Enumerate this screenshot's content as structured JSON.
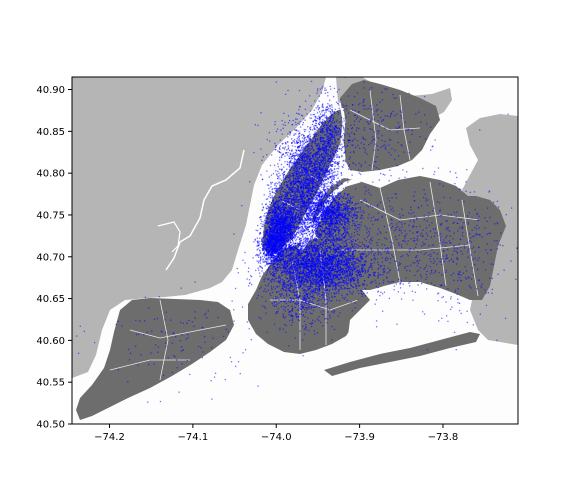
{
  "chart_data": {
    "type": "scatter",
    "title": "",
    "xlabel": "",
    "ylabel": "",
    "xlim": [
      -74.245,
      -73.71
    ],
    "ylim": [
      40.5,
      40.915
    ],
    "x_ticks": [
      -74.2,
      -74.1,
      -74.0,
      -73.9,
      -73.8
    ],
    "x_tick_labels": [
      "−74.2",
      "−74.1",
      "−74.0",
      "−73.9",
      "−73.8"
    ],
    "y_ticks": [
      40.5,
      40.55,
      40.6,
      40.65,
      40.7,
      40.75,
      40.8,
      40.85,
      40.9
    ],
    "y_tick_labels": [
      "40.50",
      "40.55",
      "40.60",
      "40.65",
      "40.70",
      "40.75",
      "40.80",
      "40.85",
      "40.90"
    ],
    "grid": false,
    "legend": "none",
    "colors": {
      "water": "#fdfdfd",
      "land_context": "#b5b5b5",
      "land_city": "#6d6d6d",
      "boundary": "#e8e8e8",
      "points": "#0000ff"
    },
    "clusters": [
      {
        "x": -73.965,
        "y": 40.785,
        "sx": 0.018,
        "sy": 0.035,
        "n": 2600
      },
      {
        "x": -73.995,
        "y": 40.735,
        "sx": 0.01,
        "sy": 0.018,
        "n": 1700
      },
      {
        "x": -74.005,
        "y": 40.713,
        "sx": 0.007,
        "sy": 0.01,
        "n": 700
      },
      {
        "x": -73.94,
        "y": 40.84,
        "sx": 0.01,
        "sy": 0.025,
        "n": 600
      },
      {
        "x": -73.95,
        "y": 40.69,
        "sx": 0.03,
        "sy": 0.018,
        "n": 3000
      },
      {
        "x": -73.935,
        "y": 40.75,
        "sx": 0.015,
        "sy": 0.012,
        "n": 1000
      },
      {
        "x": -73.97,
        "y": 40.65,
        "sx": 0.02,
        "sy": 0.02,
        "n": 400
      },
      {
        "x": -73.9,
        "y": 40.85,
        "sx": 0.04,
        "sy": 0.03,
        "n": 350
      },
      {
        "x": -73.86,
        "y": 40.72,
        "sx": 0.06,
        "sy": 0.035,
        "n": 600
      },
      {
        "x": -74.12,
        "y": 40.6,
        "sx": 0.05,
        "sy": 0.03,
        "n": 120
      },
      {
        "x": -73.78,
        "y": 40.7,
        "sx": 0.03,
        "sy": 0.04,
        "n": 200
      }
    ]
  }
}
